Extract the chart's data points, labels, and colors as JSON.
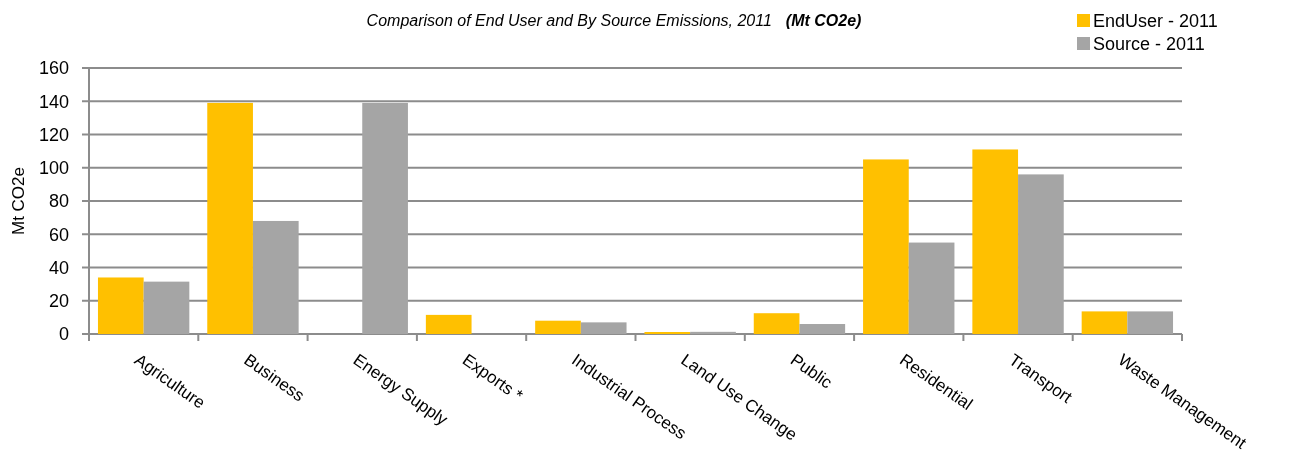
{
  "chart_data": {
    "type": "bar",
    "title": "Comparison of End User and By Source Emissions, 2011",
    "subtitle": "(Mt CO2e)",
    "ylabel": "Mt CO2e",
    "categories": [
      "Agriculture",
      "Business",
      "Energy Supply",
      "Exports *",
      "Industrial Process",
      "Land Use Change",
      "Public",
      "Residential",
      "Transport",
      "Waste Management"
    ],
    "series": [
      {
        "name": "EndUser - 2011",
        "color": "#ffc000",
        "values": [
          34,
          139,
          null,
          11.5,
          8,
          1.2,
          12.5,
          105,
          111,
          13.6
        ]
      },
      {
        "name": "Source - 2011",
        "color": "#a5a5a5",
        "values": [
          31.5,
          68,
          139,
          null,
          7,
          1.3,
          6,
          55,
          96,
          13.6
        ]
      }
    ],
    "ylim": [
      0,
      160
    ],
    "yticks": [
      0,
      20,
      40,
      60,
      80,
      100,
      120,
      140,
      160
    ],
    "grid": "y",
    "legend": "top right"
  }
}
